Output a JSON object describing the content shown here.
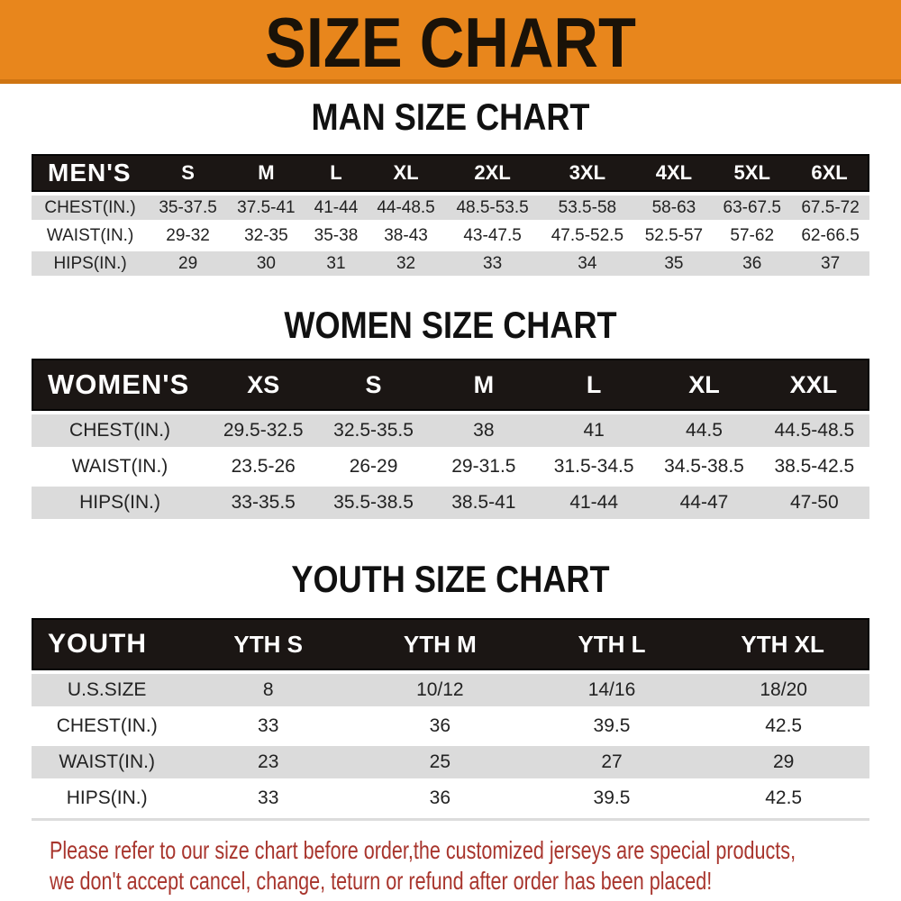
{
  "banner": {
    "title": "SIZE CHART"
  },
  "sections": [
    {
      "id": "mens",
      "title": "MAN SIZE CHART",
      "header_label": "MEN'S",
      "columns": [
        "S",
        "M",
        "L",
        "XL",
        "2XL",
        "3XL",
        "4XL",
        "5XL",
        "6XL"
      ],
      "rows": [
        {
          "label": "CHEST(IN.)",
          "values": [
            "35-37.5",
            "37.5-41",
            "41-44",
            "44-48.5",
            "48.5-53.5",
            "53.5-58",
            "58-63",
            "63-67.5",
            "67.5-72"
          ]
        },
        {
          "label": "WAIST(IN.)",
          "values": [
            "29-32",
            "32-35",
            "35-38",
            "38-43",
            "43-47.5",
            "47.5-52.5",
            "52.5-57",
            "57-62",
            "62-66.5"
          ]
        },
        {
          "label": "HIPS(IN.)",
          "values": [
            "29",
            "30",
            "31",
            "32",
            "33",
            "34",
            "35",
            "36",
            "37"
          ]
        }
      ]
    },
    {
      "id": "womens",
      "title": "WOMEN SIZE CHART",
      "header_label": "WOMEN'S",
      "columns": [
        "XS",
        "S",
        "M",
        "L",
        "XL",
        "XXL"
      ],
      "rows": [
        {
          "label": "CHEST(IN.)",
          "values": [
            "29.5-32.5",
            "32.5-35.5",
            "38",
            "41",
            "44.5",
            "44.5-48.5"
          ]
        },
        {
          "label": "WAIST(IN.)",
          "values": [
            "23.5-26",
            "26-29",
            "29-31.5",
            "31.5-34.5",
            "34.5-38.5",
            "38.5-42.5"
          ]
        },
        {
          "label": "HIPS(IN.)",
          "values": [
            "33-35.5",
            "35.5-38.5",
            "38.5-41",
            "41-44",
            "44-47",
            "47-50"
          ]
        }
      ]
    },
    {
      "id": "youth",
      "title": "YOUTH SIZE CHART",
      "header_label": "YOUTH",
      "columns": [
        "YTH S",
        "YTH M",
        "YTH L",
        "YTH XL"
      ],
      "rows": [
        {
          "label": "U.S.SIZE",
          "values": [
            "8",
            "10/12",
            "14/16",
            "18/20"
          ]
        },
        {
          "label": "CHEST(IN.)",
          "values": [
            "33",
            "36",
            "39.5",
            "42.5"
          ]
        },
        {
          "label": "WAIST(IN.)",
          "values": [
            "23",
            "25",
            "27",
            "29"
          ]
        },
        {
          "label": "HIPS(IN.)",
          "values": [
            "33",
            "36",
            "39.5",
            "42.5"
          ]
        }
      ]
    }
  ],
  "footer": {
    "line1": "Please refer to our size chart before order,the customized jerseys are special products,",
    "line2": "we don't accept cancel, change, teturn or refund after order has been placed!"
  },
  "colors": {
    "banner_bg": "#E8861C",
    "bar_bg": "#1B1614",
    "bar_text": "#FFFFFF",
    "stripe": "#DBDBDB",
    "cell_text": "#222222",
    "title_text": "#111111",
    "footer_text": "#A8352D"
  }
}
